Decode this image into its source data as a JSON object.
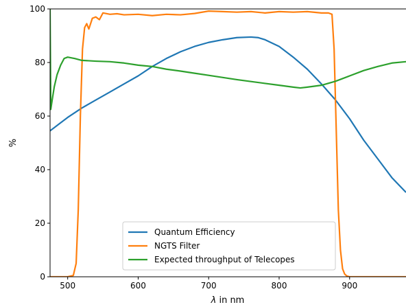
{
  "chart_data": {
    "type": "line",
    "title": "",
    "xlabel_symbol": "λ",
    "xlabel_rest": " in nm",
    "ylabel": "%",
    "xlim": [
      475,
      980
    ],
    "ylim": [
      0,
      100
    ],
    "xticks": [
      500,
      600,
      700,
      800,
      900
    ],
    "yticks": [
      0,
      20,
      40,
      60,
      80,
      100
    ],
    "xtick_labels": [
      "500",
      "600",
      "700",
      "800",
      "900"
    ],
    "ytick_labels": [
      "0",
      "20",
      "40",
      "60",
      "80",
      "100"
    ],
    "grid": false,
    "legend_position": "lower center",
    "series": [
      {
        "name": "Quantum Efficiency",
        "color": "#1f77b4",
        "x": [
          475,
          490,
          500,
          520,
          540,
          560,
          580,
          600,
          620,
          640,
          660,
          680,
          700,
          720,
          740,
          760,
          770,
          780,
          800,
          820,
          840,
          860,
          880,
          900,
          920,
          940,
          960,
          980
        ],
        "y": [
          54.5,
          57.5,
          59.5,
          63,
          66,
          69,
          72,
          75,
          78.5,
          81.5,
          84,
          86,
          87.5,
          88.5,
          89.3,
          89.5,
          89.3,
          88.5,
          86,
          82,
          77.5,
          72,
          66,
          59,
          51,
          44,
          37,
          31.5
        ]
      },
      {
        "name": "NGTS Filter",
        "color": "#ff7f0e",
        "x": [
          475,
          500,
          508,
          512,
          515,
          518,
          521,
          524,
          527,
          530,
          535,
          540,
          545,
          550,
          560,
          570,
          580,
          600,
          620,
          640,
          660,
          680,
          700,
          720,
          740,
          760,
          780,
          800,
          820,
          840,
          860,
          870,
          875,
          878,
          881,
          884,
          887,
          890,
          893,
          896,
          900,
          980
        ],
        "y": [
          0,
          0,
          0.5,
          5,
          25,
          60,
          85,
          93,
          94.5,
          92.5,
          96.5,
          97,
          96,
          98.5,
          98,
          98.2,
          97.8,
          98,
          97.5,
          98,
          97.8,
          98.3,
          99.2,
          99,
          98.8,
          99,
          98.5,
          99,
          98.8,
          99,
          98.5,
          98.5,
          98,
          85,
          55,
          25,
          10,
          3,
          1,
          0.3,
          0,
          0
        ]
      },
      {
        "name": "Expected throughput of Telecopes",
        "color": "#2ca02c",
        "x": [
          475,
          476,
          478,
          481,
          485,
          490,
          495,
          500,
          510,
          520,
          540,
          560,
          580,
          600,
          620,
          640,
          660,
          680,
          700,
          720,
          740,
          760,
          780,
          800,
          820,
          830,
          840,
          860,
          880,
          900,
          920,
          940,
          960,
          980
        ],
        "y": [
          100,
          62.5,
          66,
          71,
          75.5,
          79,
          81.5,
          82,
          81.5,
          80.8,
          80.5,
          80.3,
          79.8,
          79,
          78.5,
          77.5,
          76.8,
          76,
          75.2,
          74.4,
          73.6,
          72.9,
          72.2,
          71.5,
          70.8,
          70.5,
          70.8,
          71.5,
          73,
          75,
          77,
          78.5,
          79.8,
          80.3
        ]
      }
    ]
  }
}
